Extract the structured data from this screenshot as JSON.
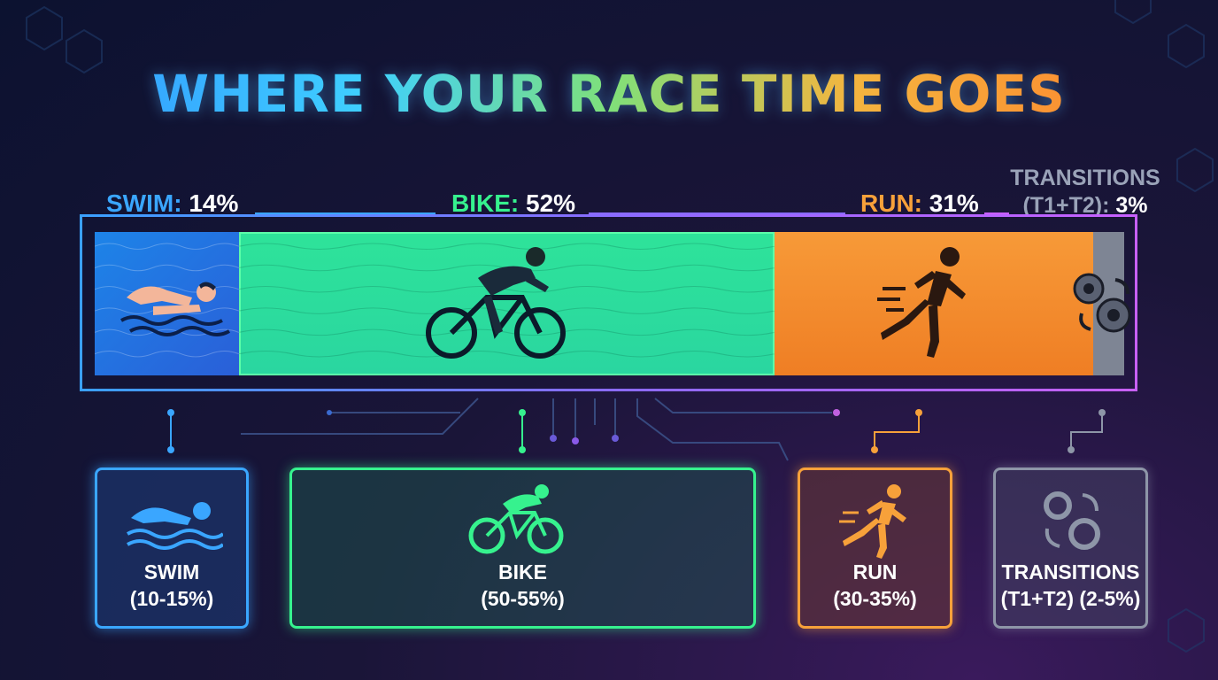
{
  "title": "WHERE YOUR RACE TIME GOES",
  "colors": {
    "swim": "#3aa6ff",
    "bike": "#36f28e",
    "run": "#f7a13a",
    "transitions": "#a3a9b8"
  },
  "bar_labels": {
    "swim": {
      "name": "SWIM:",
      "value": "14%"
    },
    "bike": {
      "name": "BIKE:",
      "value": "52%"
    },
    "run": {
      "name": "RUN:",
      "value": "31%"
    },
    "transitions": {
      "name_line1": "TRANSITIONS",
      "name_line2": "(T1+T2):",
      "value": "3%"
    }
  },
  "cards": {
    "swim": {
      "line1": "SWIM",
      "line2": "(10-15%)",
      "icon": "swimmer-icon"
    },
    "bike": {
      "line1": "BIKE",
      "line2": "(50-55%)",
      "icon": "cyclist-icon"
    },
    "run": {
      "line1": "RUN",
      "line2": "(30-35%)",
      "icon": "runner-icon"
    },
    "transitions": {
      "line1": "TRANSITIONS",
      "line2": "(T1+T2) (2-5%)",
      "icon": "gears-icon"
    }
  },
  "chart_data": {
    "type": "bar",
    "orientation": "horizontal-stacked",
    "title": "WHERE YOUR RACE TIME GOES",
    "categories": [
      "SWIM",
      "BIKE",
      "RUN",
      "TRANSITIONS (T1+T2)"
    ],
    "values": [
      14,
      52,
      31,
      3
    ],
    "unit": "%",
    "typical_ranges": [
      "10-15%",
      "50-55%",
      "30-35%",
      "2-5%"
    ]
  }
}
